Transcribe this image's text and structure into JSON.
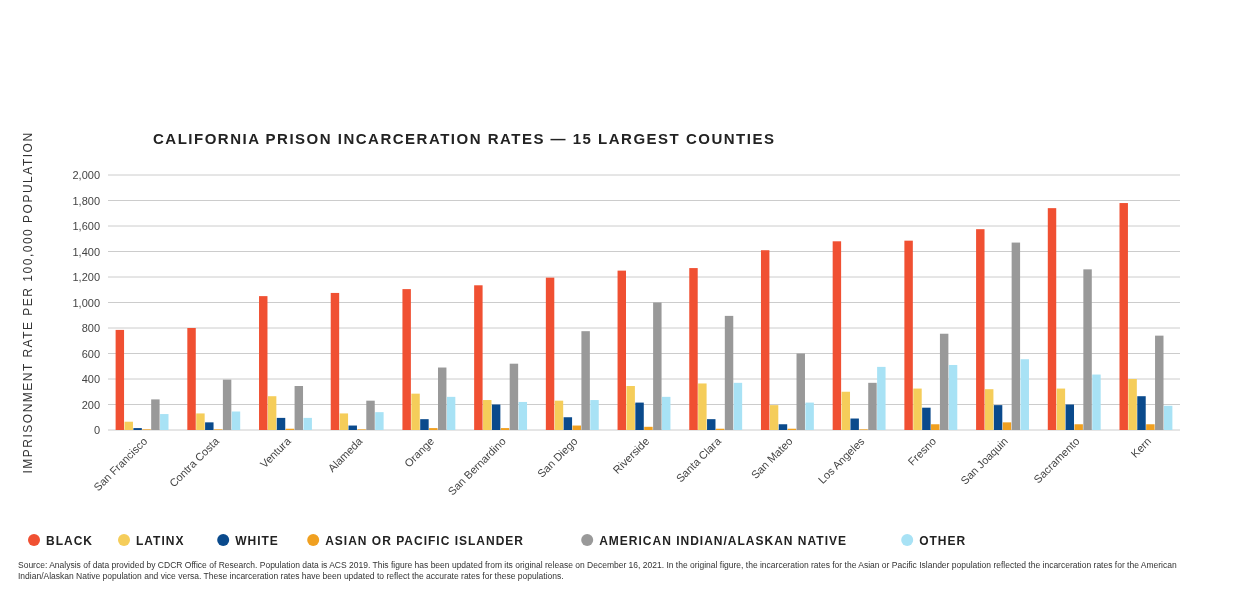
{
  "chart_data": {
    "type": "bar",
    "title": "CALIFORNIA PRISON INCARCERATION RATES — 15 LARGEST COUNTIES",
    "ylabel": "IMPRISONMENT RATE PER 100,000 POPULATION",
    "categories": [
      "San Francisco",
      "Contra Costa",
      "Ventura",
      "Alameda",
      "Orange",
      "San Bernardino",
      "San Diego",
      "Riverside",
      "Santa Clara",
      "San Mateo",
      "Los Angeles",
      "Fresno",
      "San Joaquin",
      "Sacramento",
      "Kern"
    ],
    "series": [
      {
        "name": "BLACK",
        "color": "#f05032",
        "values": [
          785,
          800,
          1050,
          1075,
          1105,
          1135,
          1195,
          1250,
          1270,
          1410,
          1480,
          1485,
          1575,
          1740,
          1780
        ]
      },
      {
        "name": "LATINX",
        "color": "#f5cd5a",
        "values": [
          65,
          130,
          265,
          130,
          285,
          235,
          230,
          345,
          365,
          195,
          300,
          325,
          320,
          325,
          400
        ]
      },
      {
        "name": "WHITE",
        "color": "#0a4a8c",
        "values": [
          15,
          60,
          95,
          35,
          85,
          200,
          100,
          215,
          85,
          45,
          90,
          175,
          195,
          200,
          265
        ]
      },
      {
        "name": "ASIAN OR PACIFIC ISLANDER",
        "color": "#f0a020",
        "values": [
          5,
          5,
          10,
          5,
          15,
          15,
          35,
          25,
          10,
          10,
          5,
          45,
          60,
          45,
          45
        ]
      },
      {
        "name": "AMERICAN INDIAN/ALASKAN NATIVE",
        "color": "#999999",
        "values": [
          240,
          395,
          345,
          230,
          490,
          520,
          775,
          1000,
          895,
          600,
          370,
          755,
          1470,
          1260,
          740
        ]
      },
      {
        "name": "OTHER",
        "color": "#a8e2f5",
        "values": [
          125,
          145,
          95,
          140,
          260,
          220,
          235,
          260,
          370,
          215,
          495,
          510,
          555,
          435,
          190
        ]
      }
    ],
    "ylim": [
      0,
      2000
    ],
    "yticks": [
      0,
      200,
      400,
      600,
      800,
      {
        "value": 1000,
        "label": "1,000"
      },
      {
        "value": 1200,
        "label": "1,200"
      },
      {
        "value": 1400,
        "label": "1,400"
      },
      {
        "value": 1600,
        "label": "1,600"
      },
      {
        "value": 1800,
        "label": "1,800"
      },
      {
        "value": 2000,
        "label": "2,000"
      }
    ],
    "grid": "y",
    "legend": "bottom",
    "annotations": [
      "Source: Analysis of data provided by CDCR Office of Research. Population data is ACS 2019. This figure has been updated from its original release on December 16, 2021. In the original figure, the incarceration rates for the Asian or Pacific Islander population reflected the incarceration rates for the American Indian/Alaskan Native population and vice versa. These incarceration rates have been updated to reflect the accurate rates for these populations."
    ]
  }
}
